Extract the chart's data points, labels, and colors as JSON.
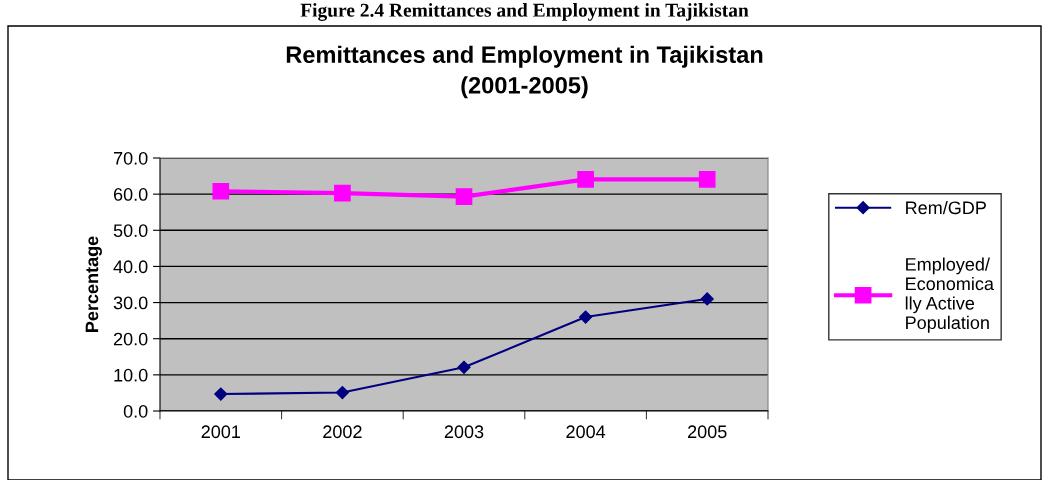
{
  "chart_data": {
    "type": "line",
    "title": "Remittances and Employment in Tajikistan\n(2001-2005)",
    "annotations": [
      "Figure 2.4 Remittances and Employment in Tajikistan"
    ],
    "ylabel": "Percentage",
    "categories": [
      "2001",
      "2002",
      "2003",
      "2004",
      "2005"
    ],
    "series": [
      {
        "name": "Rem/GDP",
        "color": "#000080",
        "marker": "diamond",
        "values": [
          4.7,
          5.1,
          12.1,
          26.0,
          31.0
        ]
      },
      {
        "name": "Employed/\nEconomica\nlly Active\nPopulation",
        "color": "#ff00ff",
        "marker": "square",
        "values": [
          60.8,
          60.3,
          59.3,
          64.1,
          64.1
        ]
      }
    ],
    "ylim": [
      0,
      70
    ],
    "yticks": [
      {
        "value": 0,
        "label": "0.0"
      },
      {
        "value": 10,
        "label": "10.0"
      },
      {
        "value": 20,
        "label": "20.0"
      },
      {
        "value": 30,
        "label": "30.0"
      },
      {
        "value": 40,
        "label": "40.0"
      },
      {
        "value": 50,
        "label": "50.0"
      },
      {
        "value": 60,
        "label": "60.0"
      },
      {
        "value": 70,
        "label": "70.0"
      }
    ],
    "grid": "y",
    "legend": "right"
  }
}
